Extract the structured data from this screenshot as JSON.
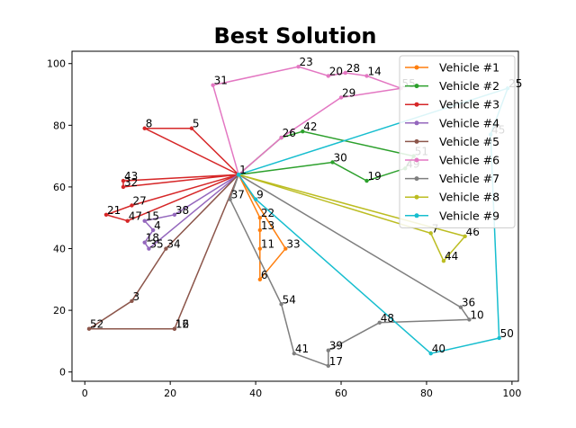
{
  "chart_data": {
    "type": "line",
    "title": "Best Solution",
    "xlabel": "",
    "ylabel": "",
    "xlim": [
      -3,
      101.5
    ],
    "ylim": [
      -3,
      104
    ],
    "xticks": [
      0,
      20,
      40,
      60,
      80,
      100
    ],
    "yticks": [
      0,
      20,
      40,
      60,
      80,
      100
    ],
    "legend_position": "top-right",
    "depot": {
      "label": "1",
      "x": 36,
      "y": 64
    },
    "series": [
      {
        "name": "Vehicle #1",
        "color": "#ff7f0e",
        "points": [
          [
            "1",
            36,
            64
          ],
          [
            "22",
            41,
            50
          ],
          [
            "13",
            41,
            46
          ],
          [
            "11",
            41,
            40
          ],
          [
            "6",
            41,
            30
          ],
          [
            "33",
            47,
            40
          ],
          [
            "1",
            36,
            64
          ]
        ]
      },
      {
        "name": "Vehicle #2",
        "color": "#2ca02c",
        "points": [
          [
            "1",
            36,
            64
          ],
          [
            "26",
            46,
            76
          ],
          [
            "42",
            51,
            78
          ],
          [
            "51",
            77,
            70
          ],
          [
            "49",
            75,
            66
          ],
          [
            "19",
            66,
            62
          ],
          [
            "30",
            58,
            68
          ],
          [
            "1",
            36,
            64
          ]
        ]
      },
      {
        "name": "Vehicle #3",
        "color": "#d62728",
        "points": [
          [
            "1",
            36,
            64
          ],
          [
            "8",
            14,
            79
          ],
          [
            "5",
            25,
            79
          ],
          [
            "1",
            36,
            64
          ],
          [
            "43",
            9,
            62
          ],
          [
            "32",
            9,
            60
          ],
          [
            "1",
            36,
            64
          ],
          [
            "27",
            11,
            54
          ],
          [
            "21",
            5,
            51
          ],
          [
            "47",
            10,
            49
          ],
          [
            "1",
            36,
            64
          ]
        ]
      },
      {
        "name": "Vehicle #4",
        "color": "#9467bd",
        "points": [
          [
            "1",
            36,
            64
          ],
          [
            "38",
            21,
            51
          ],
          [
            "15",
            14,
            49
          ],
          [
            "4",
            16,
            46
          ],
          [
            "18",
            14,
            42
          ],
          [
            "35",
            15,
            40
          ],
          [
            "1",
            36,
            64
          ]
        ]
      },
      {
        "name": "Vehicle #5",
        "color": "#8c564b",
        "points": [
          [
            "1",
            36,
            64
          ],
          [
            "34",
            19,
            40
          ],
          [
            "3",
            11,
            23
          ],
          [
            "52",
            1,
            14
          ],
          [
            "16",
            21,
            14
          ],
          [
            "12",
            21,
            14
          ],
          [
            "1",
            36,
            64
          ]
        ]
      },
      {
        "name": "Vehicle #6",
        "color": "#e377c2",
        "points": [
          [
            "1",
            36,
            64
          ],
          [
            "31",
            30,
            93
          ],
          [
            "23",
            50,
            99
          ],
          [
            "20",
            57,
            96
          ],
          [
            "28",
            61,
            97
          ],
          [
            "14",
            66,
            96
          ],
          [
            "55",
            74,
            92
          ],
          [
            "29",
            60,
            89
          ],
          [
            "26",
            46,
            76
          ],
          [
            "1",
            36,
            64
          ]
        ]
      },
      {
        "name": "Vehicle #7",
        "color": "#7f7f7f",
        "points": [
          [
            "1",
            36,
            64
          ],
          [
            "37",
            34,
            56
          ],
          [
            "54",
            46,
            22
          ],
          [
            "41",
            49,
            6
          ],
          [
            "17",
            57,
            2
          ],
          [
            "39",
            57,
            7
          ],
          [
            "48",
            69,
            16
          ],
          [
            "10",
            90,
            17
          ],
          [
            "36",
            88,
            21
          ],
          [
            "1",
            36,
            64
          ]
        ]
      },
      {
        "name": "Vehicle #8",
        "color": "#bcbd22",
        "points": [
          [
            "1",
            36,
            64
          ],
          [
            "7",
            81,
            45
          ],
          [
            "44",
            84,
            36
          ],
          [
            "46",
            89,
            44
          ],
          [
            "1",
            36,
            64
          ]
        ]
      },
      {
        "name": "Vehicle #9",
        "color": "#17becf",
        "points": [
          [
            "1",
            36,
            64
          ],
          [
            "9",
            40,
            56
          ],
          [
            "40",
            81,
            6
          ],
          [
            "50",
            97,
            11
          ],
          [
            "45",
            95,
            77
          ],
          [
            "25",
            99,
            92
          ],
          [
            "1",
            36,
            64
          ]
        ]
      }
    ]
  }
}
